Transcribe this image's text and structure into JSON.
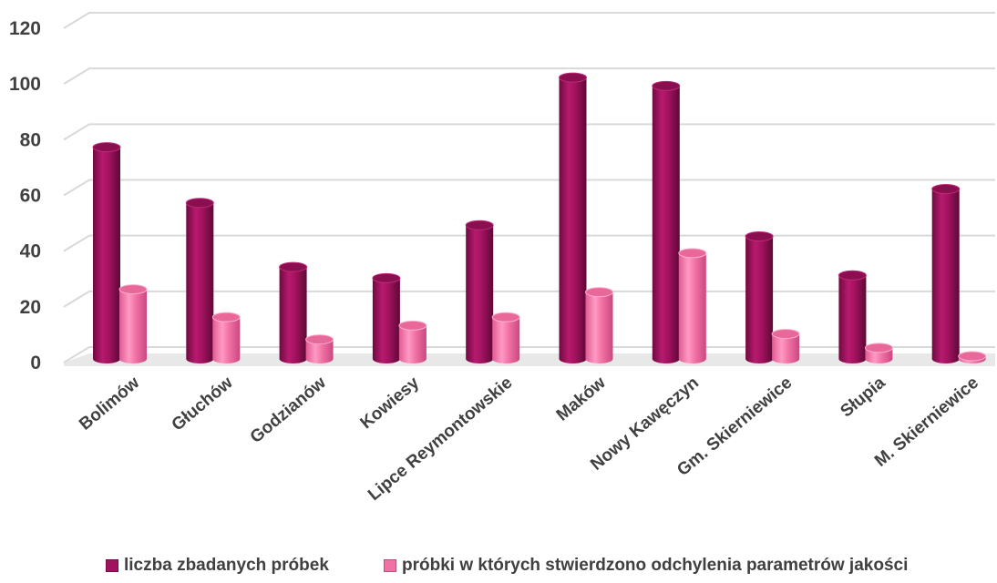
{
  "chart_data": {
    "type": "bar",
    "categories": [
      "Bolimów",
      "Głuchów",
      "Godzianów",
      "Kowiesy",
      "Lipce Reymontowskie",
      "Maków",
      "Nowy Kawęczyn",
      "Gm. Skierniewice",
      "Słupia",
      "M. Skierniewice"
    ],
    "series": [
      {
        "name": "liczba zbadanych próbek",
        "values": [
          75,
          55,
          32,
          28,
          47,
          100,
          97,
          43,
          29,
          60
        ],
        "color": "#a0125e"
      },
      {
        "name": "próbki w których stwierdzono odchylenia parametrów jakości",
        "values": [
          24,
          14,
          6,
          11,
          14,
          23,
          37,
          8,
          3,
          0
        ],
        "color": "#f271a4"
      }
    ],
    "ylim": [
      0,
      120
    ],
    "yticks": [
      "0",
      "20",
      "40",
      "60",
      "80",
      "100",
      "120"
    ],
    "grid": true,
    "legend_position": "bottom",
    "style": "3d-cylinder"
  }
}
